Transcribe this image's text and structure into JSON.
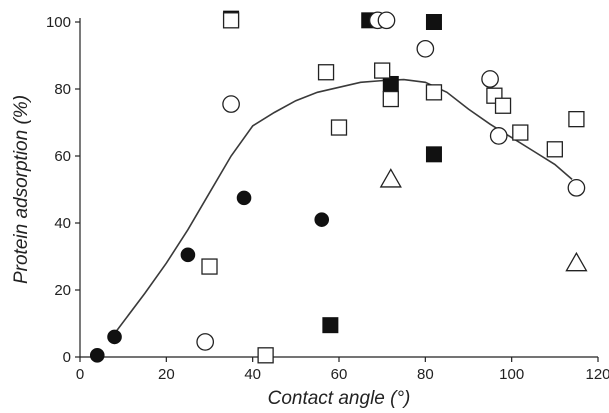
{
  "chart_data": {
    "type": "scatter",
    "xlabel": "Contact angle (°)",
    "ylabel": "Protein adsorption (%)",
    "xlim": [
      0,
      120
    ],
    "ylim": [
      0,
      100
    ],
    "xticks": [
      "0",
      "20",
      "40",
      "60",
      "80",
      "100",
      "120"
    ],
    "yticks": [
      "0",
      "20",
      "40",
      "60",
      "80",
      "100"
    ],
    "grid": false,
    "legend": "none",
    "series": [
      {
        "marker": "filled-circle",
        "points": [
          [
            4,
            0.5
          ],
          [
            8,
            6
          ],
          [
            25,
            30.5
          ],
          [
            38,
            47.5
          ],
          [
            56,
            41
          ]
        ]
      },
      {
        "marker": "filled-square",
        "points": [
          [
            35,
            101
          ],
          [
            58,
            9.5
          ],
          [
            67,
            100.5
          ],
          [
            72,
            81.5
          ],
          [
            82,
            60.5
          ],
          [
            82,
            100
          ]
        ]
      },
      {
        "marker": "open-circle",
        "points": [
          [
            29,
            4.5
          ],
          [
            35,
            75.5
          ],
          [
            69,
            100.5
          ],
          [
            71,
            100.5
          ],
          [
            80,
            92
          ],
          [
            95,
            83
          ],
          [
            97,
            66
          ],
          [
            115,
            50.5
          ]
        ]
      },
      {
        "marker": "open-square",
        "points": [
          [
            30,
            27
          ],
          [
            35,
            100.5
          ],
          [
            43,
            0.5
          ],
          [
            57,
            85
          ],
          [
            60,
            68.5
          ],
          [
            70,
            85.5
          ],
          [
            72,
            77
          ],
          [
            82,
            79
          ],
          [
            96,
            78
          ],
          [
            98,
            75
          ],
          [
            102,
            67
          ],
          [
            110,
            62
          ],
          [
            115,
            71
          ]
        ]
      },
      {
        "marker": "open-triangle",
        "points": [
          [
            72,
            53
          ],
          [
            115,
            28
          ]
        ]
      }
    ],
    "fit_line": {
      "points": [
        [
          8,
          7
        ],
        [
          15,
          19
        ],
        [
          20,
          28
        ],
        [
          25,
          38
        ],
        [
          30,
          49
        ],
        [
          35,
          60
        ],
        [
          40,
          69
        ],
        [
          45,
          73
        ],
        [
          50,
          76.5
        ],
        [
          55,
          79
        ],
        [
          60,
          80.5
        ],
        [
          65,
          82
        ],
        [
          70,
          82.5
        ],
        [
          75,
          82.8
        ],
        [
          80,
          82
        ],
        [
          85,
          79
        ],
        [
          90,
          74
        ],
        [
          95,
          69.5
        ],
        [
          100,
          65.5
        ],
        [
          105,
          61.5
        ],
        [
          110,
          57.5
        ],
        [
          114,
          53
        ]
      ]
    }
  }
}
